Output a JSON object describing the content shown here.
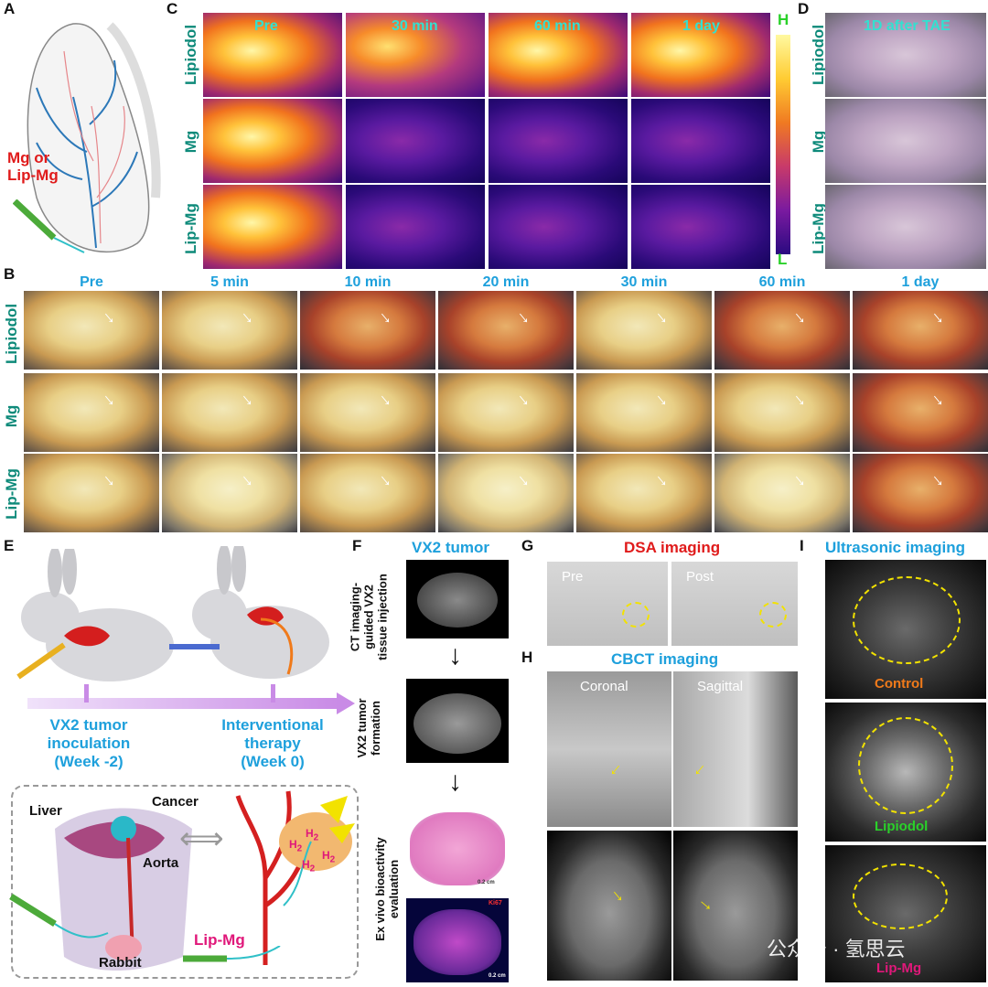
{
  "panels": {
    "A": {
      "letter": "A",
      "label": "Mg or\nLip-Mg"
    },
    "B": {
      "letter": "B",
      "columns": [
        "Pre",
        "5 min",
        "10 min",
        "20 min",
        "30 min",
        "60 min",
        "1 day"
      ],
      "rows": [
        "Lipiodol",
        "Mg",
        "Lip-Mg"
      ]
    },
    "C": {
      "letter": "C",
      "columns": [
        "Pre",
        "30 min",
        "60 min",
        "1 day"
      ],
      "rows": [
        "Lipiodol",
        "Mg",
        "Lip-Mg"
      ],
      "scale_high": "H",
      "scale_low": "L"
    },
    "D": {
      "letter": "D",
      "title": "1D after TAE",
      "rows": [
        "Lipiodol",
        "Mg",
        "Lip-Mg"
      ]
    },
    "E": {
      "letter": "E",
      "inoculation": "VX2 tumor\ninoculation\n(Week -2)",
      "therapy": "Interventional\ntherapy\n(Week 0)",
      "liver": "Liver",
      "cancer": "Cancer",
      "aorta": "Aorta",
      "rabbit": "Rabbit",
      "lipmg": "Lip-Mg",
      "h2": "H",
      "h2_sub": "2"
    },
    "F": {
      "letter": "F",
      "title": "VX2 tumor",
      "step1": "CT imaging-\nguided VX2\ntissue injection",
      "step2": "VX2 tumor\nformation",
      "step3": "Ex vivo bioactivity\nevaluation",
      "ki67": "Ki67",
      "scale1": "0.2 cm",
      "scale2": "0.2 cm"
    },
    "G": {
      "letter": "G",
      "title": "DSA imaging",
      "pre": "Pre",
      "post": "Post"
    },
    "H": {
      "letter": "H",
      "title": "CBCT imaging",
      "coronal": "Coronal",
      "sagittal": "Sagittal"
    },
    "I": {
      "letter": "I",
      "title": "Ultrasonic imaging",
      "control": "Control",
      "lipiodol": "Lipiodol",
      "lipmg": "Lip-Mg"
    }
  },
  "watermark": "公众号 · 氢思云",
  "colors": {
    "teal": "#0e8a7a",
    "sky": "#1ea0dc",
    "red": "#e01b1b",
    "orange": "#f07a1a",
    "green": "#2ad12a",
    "magenta": "#e0187a",
    "purple": "#c98be6"
  }
}
